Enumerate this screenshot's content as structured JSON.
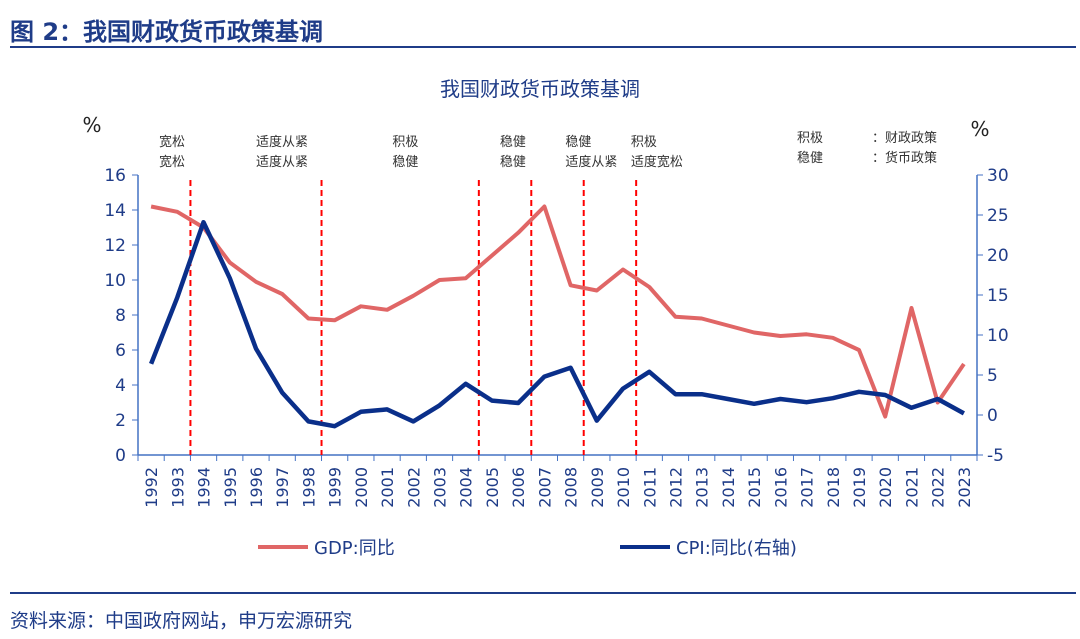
{
  "header": {
    "title": "图 2：我国财政货币政策基调"
  },
  "source": "资料来源：中国政府网站，申万宏源研究",
  "chart_data": {
    "type": "line",
    "title": "我国财政货币政策基调",
    "left_unit": "%",
    "right_unit": "%",
    "x": [
      "1992",
      "1993",
      "1994",
      "1995",
      "1996",
      "1997",
      "1998",
      "1999",
      "2000",
      "2001",
      "2002",
      "2003",
      "2004",
      "2005",
      "2006",
      "2007",
      "2008",
      "2009",
      "2010",
      "2011",
      "2012",
      "2013",
      "2014",
      "2015",
      "2016",
      "2017",
      "2018",
      "2019",
      "2020",
      "2021",
      "2022",
      "2023"
    ],
    "left_axis": {
      "range": [
        0,
        16
      ],
      "ticks": [
        "0",
        "2",
        "4",
        "6",
        "8",
        "10",
        "12",
        "14",
        "16"
      ]
    },
    "right_axis": {
      "range": [
        -5,
        30
      ],
      "ticks": [
        "-5",
        "0",
        "5",
        "10",
        "15",
        "20",
        "25",
        "30"
      ]
    },
    "series": [
      {
        "name": "GDP:同比",
        "axis": "left",
        "color": "#e06666",
        "values": [
          14.2,
          13.9,
          13.0,
          11.0,
          9.9,
          9.2,
          7.8,
          7.7,
          8.5,
          8.3,
          9.1,
          10.0,
          10.1,
          11.4,
          12.7,
          14.2,
          9.7,
          9.4,
          10.6,
          9.6,
          7.9,
          7.8,
          7.4,
          7.0,
          6.8,
          6.9,
          6.7,
          6.0,
          2.2,
          8.4,
          3.0,
          5.2
        ]
      },
      {
        "name": "CPI:同比(右轴)",
        "axis": "right",
        "color": "#0a2f8a",
        "values": [
          6.4,
          14.7,
          24.1,
          17.1,
          8.3,
          2.8,
          -0.8,
          -1.4,
          0.4,
          0.7,
          -0.8,
          1.2,
          3.9,
          1.8,
          1.5,
          4.8,
          5.9,
          -0.7,
          3.3,
          5.4,
          2.6,
          2.6,
          2.0,
          1.4,
          2.0,
          1.6,
          2.1,
          2.9,
          2.5,
          0.9,
          2.0,
          0.2
        ]
      }
    ],
    "policy_breaks": [
      1993.5,
      1998.5,
      2004.5,
      2006.5,
      2008.5,
      2010.5
    ],
    "break_color": "#ff0000",
    "annotations": [
      {
        "at": 1992.3,
        "fiscal": "宽松",
        "monetary": "宽松"
      },
      {
        "at": 1996.0,
        "fiscal": "适度从紧",
        "monetary": "适度从紧"
      },
      {
        "at": 2001.2,
        "fiscal": "积极",
        "monetary": "稳健"
      },
      {
        "at": 2005.3,
        "fiscal": "稳健",
        "monetary": "稳健"
      },
      {
        "at": 2007.8,
        "fiscal": "稳健",
        "monetary": "适度从紧"
      },
      {
        "at": 2010.3,
        "fiscal": "积极",
        "monetary": "适度宽松"
      }
    ],
    "key": {
      "top": "积极",
      "bottom": "稳健",
      "top_label": "：财政政策",
      "bottom_label": "：货币政策"
    },
    "legend_position": "bottom",
    "grid": false
  }
}
